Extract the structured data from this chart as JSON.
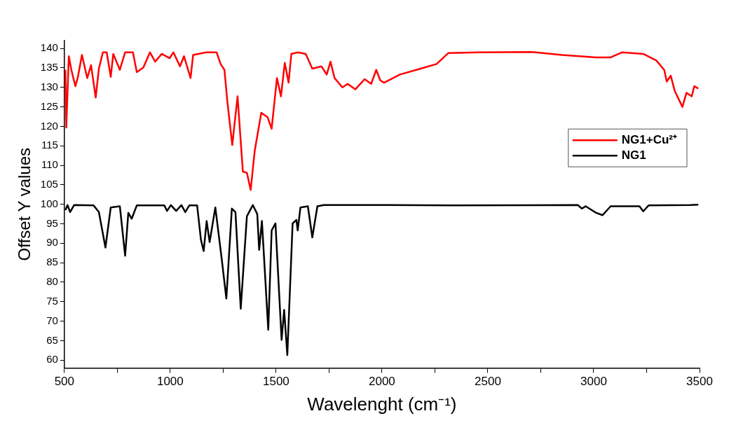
{
  "chart_data": {
    "type": "line",
    "xlabel": "Wavelenght (cm⁻¹)",
    "ylabel": "Offset Y values",
    "xlim": [
      500,
      3500
    ],
    "ylim": [
      58,
      142
    ],
    "xticks": [
      500,
      {
        "value": 750,
        "label": null
      },
      1000,
      {
        "value": 1250,
        "label": null
      },
      1500,
      {
        "value": 1750,
        "label": null
      },
      2000,
      {
        "value": 2250,
        "label": null
      },
      2500,
      {
        "value": 2750,
        "label": null
      },
      3000,
      {
        "value": 3250,
        "label": null
      },
      3500
    ],
    "yticks": [
      60,
      65,
      70,
      75,
      80,
      85,
      90,
      95,
      100,
      105,
      110,
      115,
      120,
      125,
      130,
      135,
      140
    ],
    "grid": false,
    "legend": "right",
    "line_style": "solid",
    "marker": "none",
    "series": [
      {
        "name": "NG1+Cu²⁺",
        "color": "#ff0000",
        "x": [
          505,
          509,
          521,
          533,
          552,
          564,
          583,
          608,
          626,
          648,
          663,
          682,
          700,
          719,
          731,
          762,
          787,
          824,
          842,
          873,
          904,
          929,
          960,
          997,
          1015,
          1046,
          1065,
          1096,
          1108,
          1170,
          1219,
          1238,
          1256,
          1269,
          1293,
          1318,
          1343,
          1362,
          1380,
          1399,
          1430,
          1460,
          1479,
          1504,
          1523,
          1541,
          1559,
          1572,
          1603,
          1640,
          1671,
          1714,
          1739,
          1757,
          1776,
          1813,
          1838,
          1874,
          1918,
          1949,
          1973,
          1992,
          2010,
          2085,
          2183,
          2258,
          2313,
          2455,
          2703,
          2851,
          3012,
          3080,
          3135,
          3234,
          3296,
          3333,
          3345,
          3364,
          3382,
          3419,
          3438,
          3463,
          3475,
          3494
        ],
        "values": [
          134.5,
          119.7,
          138,
          134.5,
          130.3,
          132.7,
          138.3,
          132.4,
          135.7,
          127.4,
          134.8,
          139,
          139,
          132.7,
          138.6,
          134.5,
          139,
          139,
          133.9,
          135.1,
          139,
          136.6,
          138.6,
          137.5,
          139,
          135.4,
          138,
          132.4,
          138.3,
          139,
          139,
          136,
          134.5,
          126.8,
          115.2,
          127.7,
          108.4,
          108.1,
          103.7,
          113.7,
          123.5,
          122.3,
          119.4,
          132.4,
          127.7,
          136.3,
          131.2,
          138.6,
          139,
          138.6,
          134.8,
          135.4,
          133.3,
          136.6,
          132.4,
          130,
          130.9,
          129.5,
          132.1,
          130.9,
          134.5,
          131.8,
          131.2,
          133.3,
          134.8,
          136,
          138.8,
          139,
          139.1,
          138.3,
          137.7,
          137.7,
          139,
          138.6,
          136.9,
          134.5,
          131.5,
          133,
          129.2,
          125,
          128.6,
          127.7,
          130.3,
          129.7
        ]
      },
      {
        "name": "NG1",
        "color": "#000000",
        "x": [
          505,
          515,
          527,
          546,
          638,
          663,
          694,
          719,
          762,
          787,
          802,
          818,
          842,
          972,
          985,
          1003,
          1028,
          1053,
          1071,
          1090,
          1127,
          1145,
          1158,
          1172,
          1186,
          1213,
          1244,
          1265,
          1291,
          1308,
          1333,
          1362,
          1390,
          1411,
          1420,
          1433,
          1463,
          1479,
          1497,
          1526,
          1538,
          1553,
          1578,
          1596,
          1602,
          1615,
          1650,
          1671,
          1695,
          1726,
          2023,
          2332,
          2925,
          2944,
          2962,
          3012,
          3042,
          3080,
          3216,
          3234,
          3259,
          3457,
          3494
        ],
        "values": [
          98.5,
          99.8,
          98,
          99.8,
          99.7,
          98,
          88.9,
          99.2,
          99.5,
          86.8,
          97.8,
          96.3,
          99.7,
          99.7,
          98.3,
          99.8,
          98.3,
          99.8,
          98,
          99.7,
          99.7,
          90.9,
          88,
          95.7,
          90.3,
          99.2,
          85.6,
          75.8,
          98.9,
          98,
          73.2,
          96.9,
          99.8,
          97.5,
          88.3,
          95.7,
          67.8,
          93.3,
          95.1,
          65.2,
          72.9,
          61.3,
          95.1,
          96,
          93.3,
          99.2,
          99.5,
          91.5,
          99.5,
          99.8,
          99.8,
          99.7,
          99.8,
          98.9,
          99.5,
          97.8,
          97.2,
          99.5,
          99.5,
          98.2,
          99.7,
          99.8,
          99.9
        ]
      }
    ]
  }
}
